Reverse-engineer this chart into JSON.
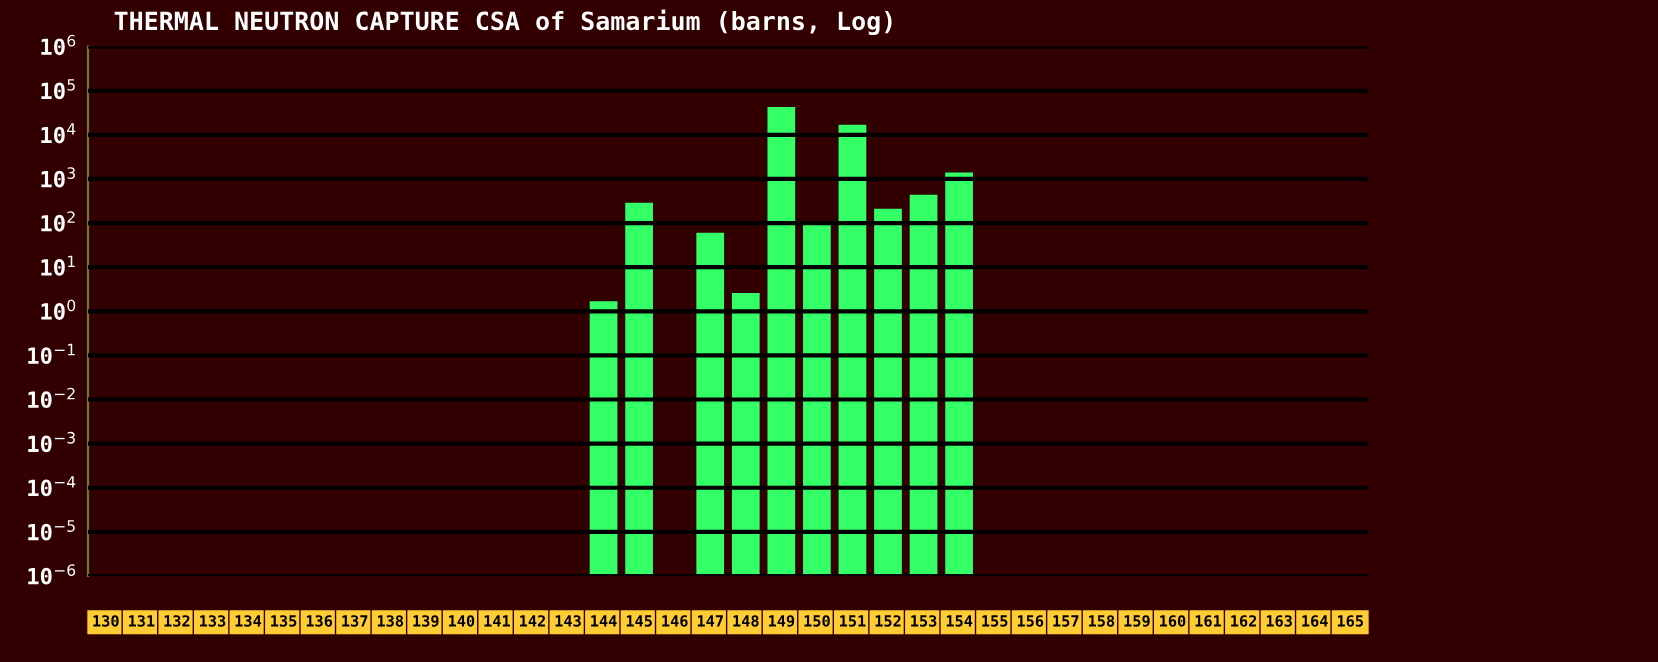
{
  "chart_data": {
    "type": "bar",
    "title": "THERMAL NEUTRON CAPTURE CSA of Samarium (barns, Log)",
    "categories": [
      "130",
      "131",
      "132",
      "133",
      "134",
      "135",
      "136",
      "137",
      "138",
      "139",
      "140",
      "141",
      "142",
      "143",
      "144",
      "145",
      "146",
      "147",
      "148",
      "149",
      "150",
      "151",
      "152",
      "153",
      "154",
      "155",
      "156",
      "157",
      "158",
      "159",
      "160",
      "161",
      "162",
      "163",
      "164",
      "165"
    ],
    "values": [
      null,
      null,
      null,
      null,
      null,
      null,
      null,
      null,
      null,
      null,
      null,
      null,
      null,
      null,
      1.7,
      290,
      null,
      60,
      2.6,
      43000,
      110,
      17000,
      210,
      440,
      1400,
      null,
      null,
      null,
      null,
      null,
      null,
      null,
      null,
      null,
      null,
      null
    ],
    "base": [
      null,
      null,
      null,
      null,
      null,
      null,
      null,
      null,
      null,
      null,
      null,
      null,
      null,
      null,
      1e-06,
      1e-06,
      null,
      1e-06,
      1e-06,
      1e-06,
      1e-06,
      1e-06,
      1e-06,
      1e-06,
      1e-06,
      null,
      null,
      null,
      null,
      null,
      null,
      null,
      null,
      null,
      null,
      null
    ],
    "color": "#33ff66",
    "log": true,
    "ylim": [
      1e-06,
      1000000
    ],
    "yticks": [
      {
        "value": 1e-06,
        "label": "10$^{−6}$"
      },
      {
        "value": 1e-05,
        "label": "10$^{−5}$"
      },
      {
        "value": 0.0001,
        "label": "10$^{−4}$"
      },
      {
        "value": 0.001,
        "label": "10$^{−3}$"
      },
      {
        "value": 0.01,
        "label": "10$^{−2}$"
      },
      {
        "value": 0.1,
        "label": "10$^{−1}$"
      },
      {
        "value": 1,
        "label": "10$^{0}$"
      },
      {
        "value": 10,
        "label": "10$^{1}$"
      },
      {
        "value": 100,
        "label": "10$^{2}$"
      },
      {
        "value": 1000,
        "label": "10$^{3}$"
      },
      {
        "value": 10000,
        "label": "10$^{4}$"
      },
      {
        "value": 100000,
        "label": "10$^{5}$"
      },
      {
        "value": 1000000,
        "label": "10$^{6}$"
      }
    ],
    "grid": "y"
  }
}
